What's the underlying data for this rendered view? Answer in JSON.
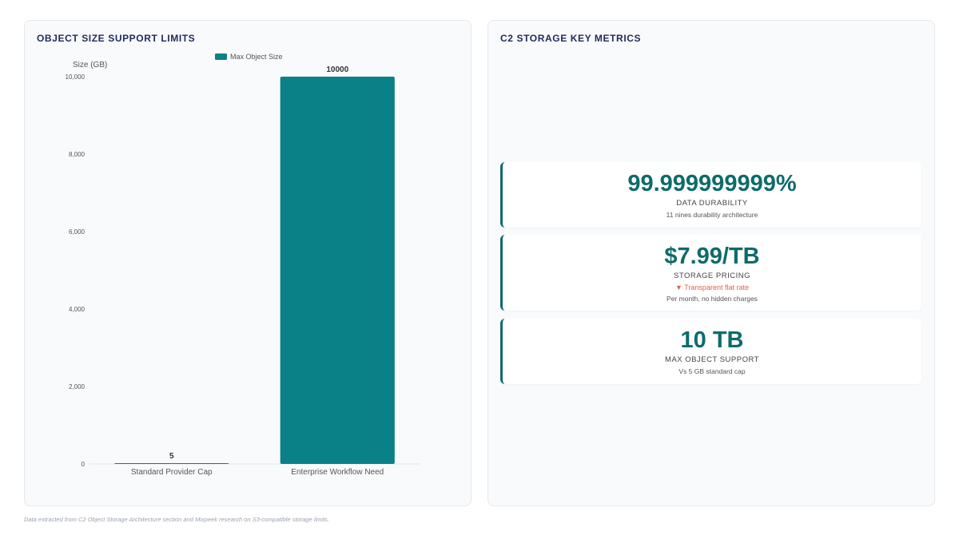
{
  "left_panel": {
    "title": "OBJECT SIZE SUPPORT LIMITS"
  },
  "right_panel": {
    "title": "C2 STORAGE KEY METRICS"
  },
  "chart_data": {
    "type": "bar",
    "title": "",
    "ylabel": "Size (GB)",
    "xlabel": "",
    "categories": [
      "Standard Provider Cap",
      "Enterprise Workflow Need"
    ],
    "series": [
      {
        "name": "Max Object Size",
        "values": [
          5,
          10000
        ],
        "color": "#0a8087"
      }
    ],
    "data_labels": [
      "5",
      "10000"
    ],
    "ylim": [
      0,
      10000
    ],
    "yticks": [
      0,
      2000,
      4000,
      6000,
      8000,
      10000
    ],
    "ytick_labels": [
      "0",
      "2,000",
      "4,000",
      "6,000",
      "8,000",
      "10,000"
    ],
    "grid": false,
    "legend_position": "top"
  },
  "metrics": [
    {
      "value": "99.999999999%",
      "label": "DATA DURABILITY",
      "trend": "",
      "note": "11 nines durability architecture"
    },
    {
      "value": "$7.99/TB",
      "label": "STORAGE PRICING",
      "trend": "▼ Transparent flat rate",
      "note": "Per month, no hidden charges"
    },
    {
      "value": "10 TB",
      "label": "MAX OBJECT SUPPORT",
      "trend": "",
      "note": "Vs 5 GB standard cap"
    }
  ],
  "footnote": "Data extracted from C2 Object Storage Architecture section and Mixpeek research on S3-compatible storage limits."
}
